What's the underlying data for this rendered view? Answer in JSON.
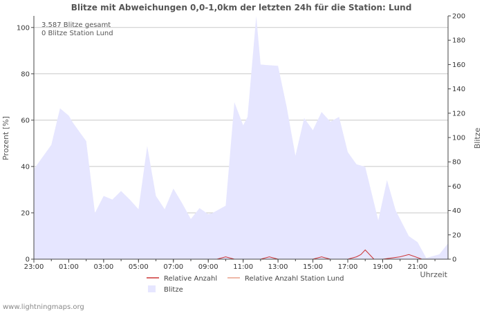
{
  "chart_data": {
    "type": "area",
    "title": "Blitze mit Abweichungen 0,0-1,0km der letzten 24h für die Station: Lund",
    "xlabel": "Uhrzeit",
    "ylabel_left": "Prozent   [%]",
    "ylabel_right": "Blitze",
    "ylim_left": [
      0,
      105
    ],
    "ylim_right": [
      0,
      200
    ],
    "yticks_left": [
      "0",
      "20",
      "40",
      "60",
      "80",
      "100"
    ],
    "yticks_right": [
      "0",
      "20",
      "40",
      "60",
      "80",
      "100",
      "120",
      "140",
      "160",
      "180",
      "200"
    ],
    "x_tick_labels": [
      "23:00",
      "01:00",
      "03:00",
      "05:00",
      "07:00",
      "09:00",
      "11:00",
      "13:00",
      "15:00",
      "17:00",
      "19:00",
      "21:00"
    ],
    "x_tick_hours": [
      0,
      2,
      4,
      6,
      8,
      10,
      12,
      14,
      16,
      18,
      20,
      22
    ],
    "x_range_hours": [
      0,
      23.75
    ],
    "annotations": [
      "3.587 Blitze gesamt",
      "0 Blitze Station Lund"
    ],
    "series": [
      {
        "name": "Blitze",
        "axis": "right",
        "style": "area",
        "color": "#e6e6ff",
        "x": [
          0,
          1,
          1.5,
          2,
          2.25,
          3,
          3.5,
          4,
          4.5,
          5,
          5.5,
          6,
          6.5,
          7,
          7.5,
          8,
          8.5,
          9,
          9.5,
          10,
          10.25,
          11,
          11.5,
          12,
          12.25,
          12.75,
          13,
          14,
          14.5,
          15,
          15.5,
          16,
          16.5,
          17,
          17.5,
          18,
          18.5,
          19,
          19.75,
          20.25,
          20.75,
          21.5,
          22,
          22.5,
          23.25,
          23.75
        ],
        "y": [
          74,
          94,
          124,
          118,
          112,
          97,
          38,
          52,
          49,
          56,
          49,
          41,
          93,
          52,
          41,
          58,
          46,
          33,
          42,
          37,
          38,
          44,
          129,
          110,
          117,
          200,
          160,
          159,
          125,
          85,
          116,
          106,
          121,
          113,
          117,
          88,
          78,
          76,
          32,
          65,
          40,
          19,
          14,
          1,
          4,
          13
        ]
      },
      {
        "name": "Relative Anzahl",
        "axis": "left",
        "style": "line",
        "color": "#cc3333",
        "x": [
          0,
          10.5,
          11,
          11.5,
          12,
          13,
          13.5,
          14,
          15,
          16,
          16.5,
          17,
          18,
          18.5,
          18.75,
          19,
          19.5,
          20,
          21,
          21.5,
          22.25,
          23.75
        ],
        "y": [
          0,
          0,
          1,
          0,
          0,
          0,
          1,
          0,
          0,
          0,
          1,
          0,
          0,
          1,
          2,
          4,
          0,
          0,
          1,
          2,
          0,
          0
        ]
      },
      {
        "name": "Relative Anzahl Station Lund",
        "axis": "left",
        "style": "line",
        "color": "#e8a08a",
        "x": [
          0,
          23.75
        ],
        "y": [
          0,
          0
        ]
      }
    ],
    "legend": [
      "Relative Anzahl",
      "Relative Anzahl Station Lund",
      "Blitze"
    ]
  },
  "footer": "www.lightningmaps.org"
}
